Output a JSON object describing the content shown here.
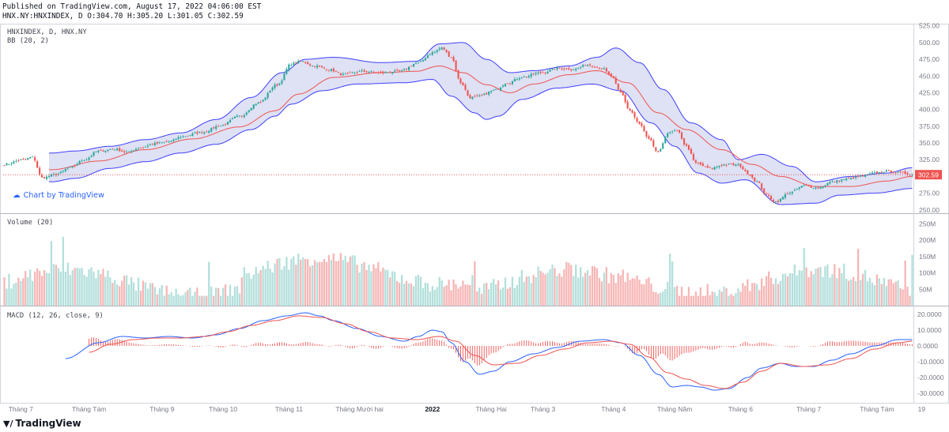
{
  "header": {
    "line1": "Published on TradingView.com, August 17, 2022 04:06:00 EST",
    "line2": "HNX.NY:HNXINDEX, D O:304.70 H:305.20 L:301.05 C:302.59"
  },
  "watermark_link": "Chart by TradingView",
  "footer_brand": "TradingView",
  "colors": {
    "up": "#26a69a",
    "down": "#ef5350",
    "up_volume": "#b2dfdb",
    "down_volume": "#f7b5b5",
    "bb_band": "#3f3fff",
    "bb_fill": "#d1d4f0",
    "bb_basis": "#ef5350",
    "macd_line": "#2962ff",
    "signal_line": "#ef5350",
    "last_price_label": "#ef5350"
  },
  "chart_data": [
    {
      "panel": "price",
      "type": "candlestick",
      "title": "HNXINDEX, D, HNX.NY",
      "indicator": "BB (20, 2)",
      "last_price_label": "302.59",
      "ylim": [
        245,
        527
      ],
      "y_ticks": [
        "525.00",
        "500.00",
        "475.00",
        "450.00",
        "425.00",
        "400.00",
        "375.00",
        "350.00",
        "325.00",
        "300.00",
        "275.00",
        "250.00"
      ],
      "anchors_close": [
        [
          0,
          318
        ],
        [
          8,
          325
        ],
        [
          12,
          329
        ],
        [
          16,
          298
        ],
        [
          22,
          303
        ],
        [
          28,
          313
        ],
        [
          34,
          325
        ],
        [
          40,
          338
        ],
        [
          47,
          341
        ],
        [
          52,
          336
        ],
        [
          58,
          343
        ],
        [
          64,
          349
        ],
        [
          70,
          352
        ],
        [
          76,
          360
        ],
        [
          84,
          366
        ],
        [
          92,
          376
        ],
        [
          100,
          390
        ],
        [
          108,
          410
        ],
        [
          116,
          437
        ],
        [
          122,
          468
        ],
        [
          126,
          472
        ],
        [
          132,
          465
        ],
        [
          138,
          460
        ],
        [
          144,
          452
        ],
        [
          152,
          457
        ],
        [
          160,
          455
        ],
        [
          168,
          457
        ],
        [
          176,
          470
        ],
        [
          182,
          485
        ],
        [
          186,
          492
        ],
        [
          190,
          478
        ],
        [
          194,
          440
        ],
        [
          198,
          418
        ],
        [
          202,
          420
        ],
        [
          208,
          428
        ],
        [
          214,
          440
        ],
        [
          220,
          448
        ],
        [
          228,
          455
        ],
        [
          236,
          462
        ],
        [
          242,
          460
        ],
        [
          248,
          467
        ],
        [
          254,
          462
        ],
        [
          258,
          450
        ],
        [
          262,
          425
        ],
        [
          266,
          398
        ],
        [
          270,
          378
        ],
        [
          274,
          355
        ],
        [
          278,
          335
        ],
        [
          282,
          365
        ],
        [
          286,
          368
        ],
        [
          290,
          345
        ],
        [
          294,
          320
        ],
        [
          300,
          312
        ],
        [
          306,
          318
        ],
        [
          312,
          317
        ],
        [
          316,
          305
        ],
        [
          320,
          292
        ],
        [
          324,
          272
        ],
        [
          328,
          262
        ],
        [
          334,
          276
        ],
        [
          340,
          286
        ],
        [
          346,
          283
        ],
        [
          352,
          292
        ],
        [
          358,
          296
        ],
        [
          364,
          300
        ],
        [
          370,
          305
        ],
        [
          376,
          308
        ],
        [
          382,
          305
        ],
        [
          386,
          303
        ]
      ],
      "bb_mid_anchors": [
        [
          0,
          315
        ],
        [
          20,
          310
        ],
        [
          40,
          323
        ],
        [
          60,
          340
        ],
        [
          80,
          356
        ],
        [
          100,
          374
        ],
        [
          115,
          398
        ],
        [
          125,
          423
        ],
        [
          140,
          448
        ],
        [
          160,
          455
        ],
        [
          175,
          457
        ],
        [
          185,
          465
        ],
        [
          195,
          455
        ],
        [
          205,
          437
        ],
        [
          215,
          425
        ],
        [
          225,
          438
        ],
        [
          240,
          452
        ],
        [
          252,
          458
        ],
        [
          265,
          440
        ],
        [
          278,
          395
        ],
        [
          290,
          370
        ],
        [
          305,
          340
        ],
        [
          318,
          318
        ],
        [
          330,
          300
        ],
        [
          345,
          285
        ],
        [
          360,
          285
        ],
        [
          375,
          293
        ],
        [
          386,
          300
        ]
      ],
      "bb_upper_anchors": [
        [
          0,
          320
        ],
        [
          12,
          330
        ],
        [
          20,
          335
        ],
        [
          30,
          338
        ],
        [
          45,
          345
        ],
        [
          60,
          355
        ],
        [
          75,
          365
        ],
        [
          90,
          385
        ],
        [
          105,
          418
        ],
        [
          118,
          455
        ],
        [
          128,
          475
        ],
        [
          140,
          478
        ],
        [
          160,
          470
        ],
        [
          175,
          472
        ],
        [
          185,
          498
        ],
        [
          195,
          500
        ],
        [
          205,
          475
        ],
        [
          215,
          455
        ],
        [
          225,
          458
        ],
        [
          240,
          465
        ],
        [
          252,
          478
        ],
        [
          260,
          492
        ],
        [
          270,
          470
        ],
        [
          280,
          430
        ],
        [
          292,
          380
        ],
        [
          305,
          355
        ],
        [
          312,
          325
        ],
        [
          322,
          333
        ],
        [
          335,
          315
        ],
        [
          345,
          292
        ],
        [
          360,
          300
        ],
        [
          375,
          305
        ],
        [
          386,
          313
        ]
      ],
      "bb_lower_anchors": [
        [
          0,
          312
        ],
        [
          12,
          300
        ],
        [
          20,
          292
        ],
        [
          30,
          297
        ],
        [
          45,
          312
        ],
        [
          60,
          322
        ],
        [
          75,
          335
        ],
        [
          90,
          348
        ],
        [
          105,
          370
        ],
        [
          115,
          390
        ],
        [
          122,
          408
        ],
        [
          135,
          428
        ],
        [
          150,
          438
        ],
        [
          170,
          440
        ],
        [
          182,
          445
        ],
        [
          190,
          420
        ],
        [
          200,
          395
        ],
        [
          205,
          385
        ],
        [
          210,
          390
        ],
        [
          220,
          415
        ],
        [
          235,
          432
        ],
        [
          250,
          438
        ],
        [
          262,
          428
        ],
        [
          275,
          380
        ],
        [
          285,
          345
        ],
        [
          295,
          305
        ],
        [
          305,
          290
        ],
        [
          315,
          295
        ],
        [
          330,
          258
        ],
        [
          345,
          260
        ],
        [
          355,
          272
        ],
        [
          370,
          275
        ],
        [
          386,
          282
        ]
      ]
    },
    {
      "panel": "volume",
      "type": "bar",
      "title": "Volume (20)",
      "ylim": [
        0,
        270
      ],
      "y_ticks": [
        "250M",
        "200M",
        "150M",
        "100M",
        "50M"
      ],
      "unit": "M"
    },
    {
      "panel": "macd",
      "type": "line",
      "title": "MACD (12, 26, close, 9)",
      "ylim": [
        -30,
        20
      ],
      "y_ticks": [
        "20.0000",
        "10.0000",
        "0.0000",
        "-10.0000",
        "-20.0000",
        "-30.0000"
      ],
      "start_index": 26,
      "macd_anchors": [
        [
          26,
          -8
        ],
        [
          40,
          2
        ],
        [
          50,
          6
        ],
        [
          60,
          5
        ],
        [
          70,
          6
        ],
        [
          80,
          5
        ],
        [
          90,
          7
        ],
        [
          100,
          11
        ],
        [
          110,
          16
        ],
        [
          120,
          19
        ],
        [
          128,
          21
        ],
        [
          134,
          19
        ],
        [
          140,
          16
        ],
        [
          150,
          11
        ],
        [
          160,
          6
        ],
        [
          170,
          3
        ],
        [
          176,
          6
        ],
        [
          182,
          10
        ],
        [
          186,
          9
        ],
        [
          190,
          2
        ],
        [
          196,
          -10
        ],
        [
          202,
          -18
        ],
        [
          208,
          -16
        ],
        [
          215,
          -10
        ],
        [
          225,
          -5
        ],
        [
          235,
          -1
        ],
        [
          245,
          3
        ],
        [
          255,
          4
        ],
        [
          262,
          2
        ],
        [
          270,
          -6
        ],
        [
          278,
          -18
        ],
        [
          284,
          -26
        ],
        [
          290,
          -25
        ],
        [
          296,
          -26
        ],
        [
          302,
          -28
        ],
        [
          308,
          -27
        ],
        [
          316,
          -20
        ],
        [
          322,
          -14
        ],
        [
          330,
          -11
        ],
        [
          336,
          -13
        ],
        [
          344,
          -13
        ],
        [
          352,
          -9
        ],
        [
          360,
          -5
        ],
        [
          370,
          0
        ],
        [
          380,
          4
        ],
        [
          386,
          4
        ]
      ],
      "signal_anchors": [
        [
          36,
          -4
        ],
        [
          45,
          1
        ],
        [
          55,
          4
        ],
        [
          65,
          5
        ],
        [
          75,
          5
        ],
        [
          85,
          6
        ],
        [
          95,
          9
        ],
        [
          105,
          13
        ],
        [
          115,
          16
        ],
        [
          125,
          19
        ],
        [
          135,
          18
        ],
        [
          145,
          14
        ],
        [
          155,
          9
        ],
        [
          165,
          5
        ],
        [
          175,
          4
        ],
        [
          185,
          6
        ],
        [
          192,
          3
        ],
        [
          200,
          -6
        ],
        [
          208,
          -12
        ],
        [
          218,
          -11
        ],
        [
          228,
          -6
        ],
        [
          238,
          -2
        ],
        [
          248,
          2
        ],
        [
          258,
          3
        ],
        [
          266,
          1
        ],
        [
          274,
          -7
        ],
        [
          282,
          -17
        ],
        [
          290,
          -21
        ],
        [
          298,
          -25
        ],
        [
          306,
          -27
        ],
        [
          314,
          -23
        ],
        [
          322,
          -16
        ],
        [
          330,
          -11
        ],
        [
          340,
          -13
        ],
        [
          350,
          -12
        ],
        [
          360,
          -8
        ],
        [
          370,
          -2
        ],
        [
          380,
          2
        ],
        [
          386,
          3
        ]
      ]
    }
  ],
  "time_axis": {
    "labels": [
      {
        "text": "Tháng 7",
        "index": 7
      },
      {
        "text": "Tháng Tám",
        "index": 36
      },
      {
        "text": "Tháng 9",
        "index": 67
      },
      {
        "text": "Tháng 10",
        "index": 93
      },
      {
        "text": "Tháng 11",
        "index": 121
      },
      {
        "text": "Tháng Mười hai",
        "index": 151
      },
      {
        "text": "2022",
        "index": 182
      },
      {
        "text": "Tháng Hai",
        "index": 207
      },
      {
        "text": "Tháng 3",
        "index": 229
      },
      {
        "text": "Tháng 4",
        "index": 259
      },
      {
        "text": "Tháng Năm",
        "index": 285
      },
      {
        "text": "Tháng 6",
        "index": 313
      },
      {
        "text": "Tháng 7",
        "index": 342
      },
      {
        "text": "Tháng Tám",
        "index": 371
      },
      {
        "text": "19",
        "index": 390
      }
    ]
  }
}
